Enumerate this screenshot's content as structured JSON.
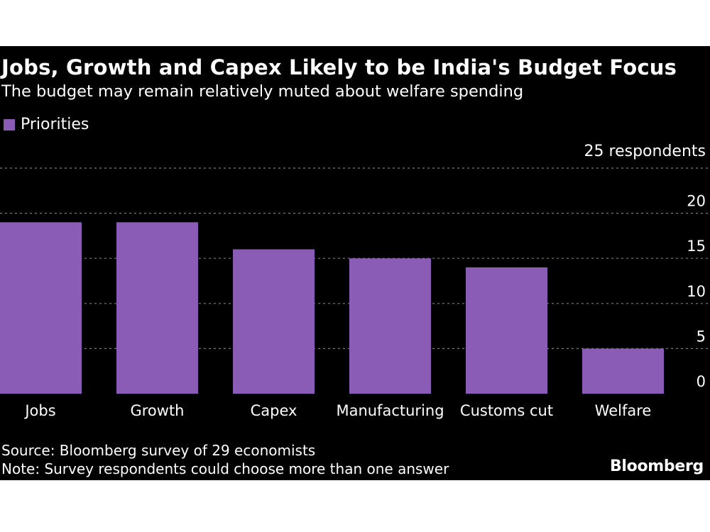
{
  "chart_data": {
    "type": "bar",
    "title": "Jobs, Growth and Capex Likely to be India's Budget Focus",
    "subtitle": "The budget may remain relatively muted about welfare spending",
    "legend": "Priorities",
    "unit_label": "25 respondents",
    "categories": [
      "Jobs",
      "Growth",
      "Capex",
      "Manufacturing",
      "Customs cut",
      "Welfare"
    ],
    "series": [
      {
        "name": "Priorities",
        "values": [
          19,
          19,
          16,
          15,
          14,
          5
        ]
      }
    ],
    "ylim": [
      0,
      25
    ],
    "yticks": [
      "0",
      "5",
      "10",
      "15",
      "20"
    ],
    "grid": true,
    "legend_position": "top-left",
    "colors": {
      "bar": "#8a5cb5",
      "background": "#000000",
      "text": "#ffffff",
      "grid": "#7a7a7a"
    }
  },
  "footer": {
    "source": "Source: Bloomberg survey of 29 economists",
    "note": "Note: Survey respondents could choose more than one answer",
    "brand": "Bloomberg"
  }
}
